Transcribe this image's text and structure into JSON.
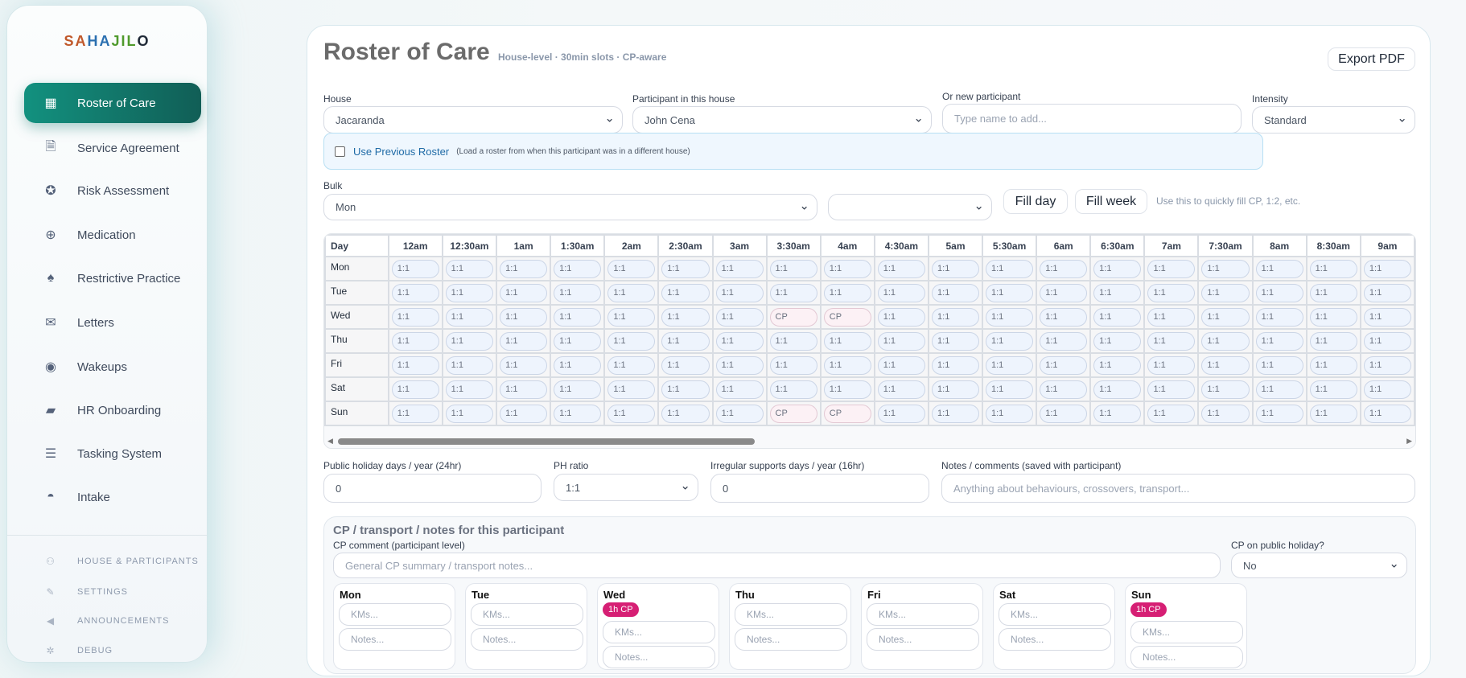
{
  "sidebar": {
    "logo": "SAHAJILO",
    "items": [
      {
        "label": "Roster of Care",
        "icon": "calendar-icon",
        "active": true
      },
      {
        "label": "Service Agreement",
        "icon": "pdf-file-icon"
      },
      {
        "label": "Risk Assessment",
        "icon": "award-icon"
      },
      {
        "label": "Medication",
        "icon": "plus-circle-icon"
      },
      {
        "label": "Restrictive Practice",
        "icon": "balloons-icon"
      },
      {
        "label": "Letters",
        "icon": "envelope-check-icon"
      },
      {
        "label": "Wakeups",
        "icon": "eye-icon"
      },
      {
        "label": "HR Onboarding",
        "icon": "comments-icon"
      },
      {
        "label": "Tasking System",
        "icon": "list-icon"
      },
      {
        "label": "Intake",
        "icon": "gauge-icon"
      }
    ],
    "secondary": [
      {
        "label": "HOUSE & PARTICIPANTS",
        "icon": "users-icon"
      },
      {
        "label": "SETTINGS",
        "icon": "wrench-icon"
      },
      {
        "label": "ANNOUNCEMENTS",
        "icon": "megaphone-icon"
      },
      {
        "label": "DEBUG",
        "icon": "gear-icon"
      }
    ]
  },
  "header": {
    "title": "Roster of Care",
    "subtitle": "House-level · 30min slots · CP-aware",
    "export_label": "Export PDF"
  },
  "filters": {
    "house_label": "House",
    "house_value": "Jacaranda",
    "participant_label": "Participant in this house",
    "participant_value": "John Cena",
    "new_label": "Or new participant",
    "new_placeholder": "Type name to add...",
    "intensity_label": "Intensity",
    "intensity_value": "Standard"
  },
  "previous": {
    "label": "Use Previous Roster",
    "note": "(Load a roster from when this participant was in a different house)",
    "checked": false
  },
  "bulk": {
    "label": "Bulk",
    "day_value": "Mon",
    "ratio_value": "",
    "fill_day": "Fill day",
    "fill_week": "Fill week",
    "hint": "Use this to quickly fill CP, 1:2, etc."
  },
  "grid": {
    "day_header": "Day",
    "times": [
      "12am",
      "12:30am",
      "1am",
      "1:30am",
      "2am",
      "2:30am",
      "3am",
      "3:30am",
      "4am",
      "4:30am",
      "5am",
      "5:30am",
      "6am",
      "6:30am",
      "7am",
      "7:30am",
      "8am",
      "8:30am",
      "9am"
    ],
    "rows": [
      {
        "day": "Mon",
        "values": [
          "1:1",
          "1:1",
          "1:1",
          "1:1",
          "1:1",
          "1:1",
          "1:1",
          "1:1",
          "1:1",
          "1:1",
          "1:1",
          "1:1",
          "1:1",
          "1:1",
          "1:1",
          "1:1",
          "1:1",
          "1:1",
          "1:1"
        ]
      },
      {
        "day": "Tue",
        "values": [
          "1:1",
          "1:1",
          "1:1",
          "1:1",
          "1:1",
          "1:1",
          "1:1",
          "1:1",
          "1:1",
          "1:1",
          "1:1",
          "1:1",
          "1:1",
          "1:1",
          "1:1",
          "1:1",
          "1:1",
          "1:1",
          "1:1"
        ]
      },
      {
        "day": "Wed",
        "values": [
          "1:1",
          "1:1",
          "1:1",
          "1:1",
          "1:1",
          "1:1",
          "1:1",
          "CP",
          "CP",
          "1:1",
          "1:1",
          "1:1",
          "1:1",
          "1:1",
          "1:1",
          "1:1",
          "1:1",
          "1:1",
          "1:1"
        ]
      },
      {
        "day": "Thu",
        "values": [
          "1:1",
          "1:1",
          "1:1",
          "1:1",
          "1:1",
          "1:1",
          "1:1",
          "1:1",
          "1:1",
          "1:1",
          "1:1",
          "1:1",
          "1:1",
          "1:1",
          "1:1",
          "1:1",
          "1:1",
          "1:1",
          "1:1"
        ]
      },
      {
        "day": "Fri",
        "values": [
          "1:1",
          "1:1",
          "1:1",
          "1:1",
          "1:1",
          "1:1",
          "1:1",
          "1:1",
          "1:1",
          "1:1",
          "1:1",
          "1:1",
          "1:1",
          "1:1",
          "1:1",
          "1:1",
          "1:1",
          "1:1",
          "1:1"
        ]
      },
      {
        "day": "Sat",
        "values": [
          "1:1",
          "1:1",
          "1:1",
          "1:1",
          "1:1",
          "1:1",
          "1:1",
          "1:1",
          "1:1",
          "1:1",
          "1:1",
          "1:1",
          "1:1",
          "1:1",
          "1:1",
          "1:1",
          "1:1",
          "1:1",
          "1:1"
        ]
      },
      {
        "day": "Sun",
        "values": [
          "1:1",
          "1:1",
          "1:1",
          "1:1",
          "1:1",
          "1:1",
          "1:1",
          "CP",
          "CP",
          "1:1",
          "1:1",
          "1:1",
          "1:1",
          "1:1",
          "1:1",
          "1:1",
          "1:1",
          "1:1",
          "1:1"
        ]
      }
    ]
  },
  "extras": {
    "ph_days_label": "Public holiday days / year (24hr)",
    "ph_days_value": "0",
    "ph_ratio_label": "PH ratio",
    "ph_ratio_value": "1:1",
    "irregular_label": "Irregular supports days / year (16hr)",
    "irregular_value": "0",
    "notes_label": "Notes / comments (saved with participant)",
    "notes_placeholder": "Anything about behaviours, crossovers, transport..."
  },
  "cp": {
    "title": "CP / transport / notes for this participant",
    "comment_label": "CP comment (participant level)",
    "comment_placeholder": "General CP summary / transport notes...",
    "ph_label": "CP on public holiday?",
    "ph_value": "No",
    "days": [
      {
        "day": "Mon",
        "badge": ""
      },
      {
        "day": "Tue",
        "badge": ""
      },
      {
        "day": "Wed",
        "badge": "1h CP"
      },
      {
        "day": "Thu",
        "badge": ""
      },
      {
        "day": "Fri",
        "badge": ""
      },
      {
        "day": "Sat",
        "badge": ""
      },
      {
        "day": "Sun",
        "badge": "1h CP"
      }
    ],
    "kms_placeholder": "KMs...",
    "notes_placeholder": "Notes..."
  },
  "colors": {
    "accent": "#12917f",
    "cp_badge": "#d61f74"
  }
}
